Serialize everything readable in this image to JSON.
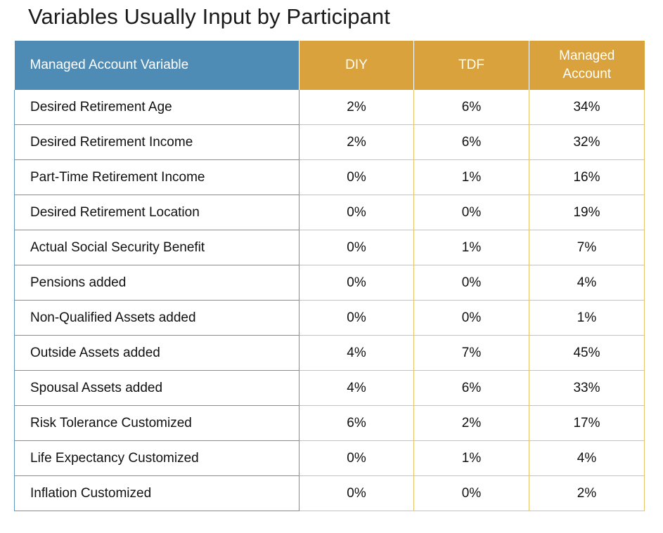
{
  "title": "Variables Usually Input by Participant",
  "columns": {
    "variable": "Managed Account Variable",
    "diy": "DIY",
    "tdf": "TDF",
    "managed_line1": "Managed",
    "managed_line2": "Account"
  },
  "colors": {
    "variable_header": "#4f8cb5",
    "value_header": "#d9a23c"
  },
  "rows": [
    {
      "name": "Desired Retirement Age",
      "diy": "2%",
      "tdf": "6%",
      "managed": "34%"
    },
    {
      "name": "Desired Retirement Income",
      "diy": "2%",
      "tdf": "6%",
      "managed": "32%"
    },
    {
      "name": "Part-Time Retirement Income",
      "diy": "0%",
      "tdf": "1%",
      "managed": "16%"
    },
    {
      "name": "Desired Retirement Location",
      "diy": "0%",
      "tdf": "0%",
      "managed": "19%"
    },
    {
      "name": "Actual Social Security Benefit",
      "diy": "0%",
      "tdf": "1%",
      "managed": "7%"
    },
    {
      "name": "Pensions added",
      "diy": "0%",
      "tdf": "0%",
      "managed": "4%"
    },
    {
      "name": "Non-Qualified Assets added",
      "diy": "0%",
      "tdf": "0%",
      "managed": "1%"
    },
    {
      "name": "Outside Assets added",
      "diy": "4%",
      "tdf": "7%",
      "managed": "45%"
    },
    {
      "name": "Spousal Assets added",
      "diy": "4%",
      "tdf": "6%",
      "managed": "33%"
    },
    {
      "name": "Risk Tolerance Customized",
      "diy": "6%",
      "tdf": "2%",
      "managed": "17%"
    },
    {
      "name": "Life Expectancy Customized",
      "diy": "0%",
      "tdf": "1%",
      "managed": "4%"
    },
    {
      "name": "Inflation Customized",
      "diy": "0%",
      "tdf": "0%",
      "managed": "2%"
    }
  ]
}
